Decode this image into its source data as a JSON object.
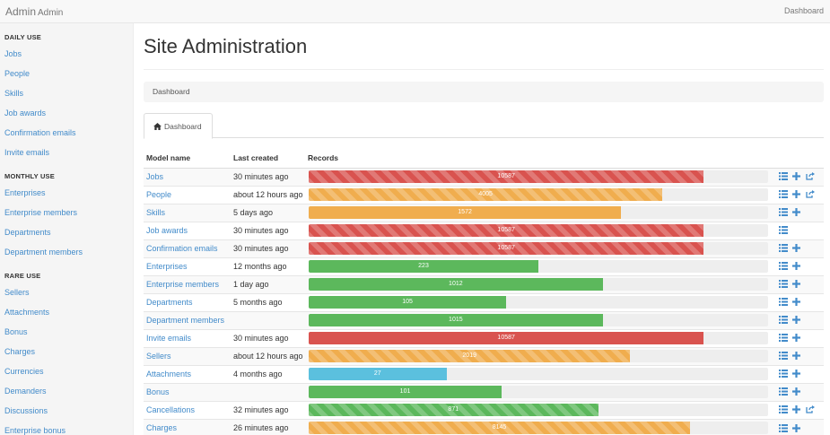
{
  "brand": {
    "title": "Admin",
    "subtitle": "Admin"
  },
  "topnav": {
    "dashboard": "Dashboard"
  },
  "sidebar": {
    "sections": [
      {
        "header": "DAILY USE",
        "items": [
          "Jobs",
          "People",
          "Skills",
          "Job awards",
          "Confirmation emails",
          "Invite emails"
        ]
      },
      {
        "header": "MONTHLY USE",
        "items": [
          "Enterprises",
          "Enterprise members",
          "Departments",
          "Department members"
        ]
      },
      {
        "header": "RARE USE",
        "items": [
          "Sellers",
          "Attachments",
          "Bonus",
          "Charges",
          "Currencies",
          "Demanders",
          "Discussions",
          "Enterprise bonus"
        ]
      }
    ]
  },
  "page": {
    "title": "Site Administration",
    "breadcrumb": "Dashboard",
    "tab": "Dashboard"
  },
  "table": {
    "headers": {
      "model": "Model name",
      "last": "Last created",
      "records": "Records"
    },
    "rows": [
      {
        "model": "Jobs",
        "last": "30 minutes ago",
        "records": "10587",
        "fill": 0.86,
        "color": "#d9534f",
        "striped": true,
        "actions": [
          "list",
          "add",
          "export"
        ]
      },
      {
        "model": "People",
        "last": "about 12 hours ago",
        "records": "4005",
        "fill": 0.77,
        "color": "#f0ad4e",
        "striped": true,
        "actions": [
          "list",
          "add",
          "export"
        ]
      },
      {
        "model": "Skills",
        "last": "5 days ago",
        "records": "1572",
        "fill": 0.68,
        "color": "#f0ad4e",
        "striped": false,
        "actions": [
          "list",
          "add"
        ]
      },
      {
        "model": "Job awards",
        "last": "30 minutes ago",
        "records": "10587",
        "fill": 0.86,
        "color": "#d9534f",
        "striped": true,
        "actions": [
          "list"
        ]
      },
      {
        "model": "Confirmation emails",
        "last": "30 minutes ago",
        "records": "10587",
        "fill": 0.86,
        "color": "#d9534f",
        "striped": true,
        "actions": [
          "list",
          "add"
        ]
      },
      {
        "model": "Enterprises",
        "last": "12 months ago",
        "records": "223",
        "fill": 0.5,
        "color": "#5cb85c",
        "striped": false,
        "actions": [
          "list",
          "add"
        ]
      },
      {
        "model": "Enterprise members",
        "last": "1 day ago",
        "records": "1012",
        "fill": 0.64,
        "color": "#5cb85c",
        "striped": false,
        "actions": [
          "list",
          "add"
        ]
      },
      {
        "model": "Departments",
        "last": "5 months ago",
        "records": "105",
        "fill": 0.43,
        "color": "#5cb85c",
        "striped": false,
        "actions": [
          "list",
          "add"
        ]
      },
      {
        "model": "Department members",
        "last": "",
        "records": "1015",
        "fill": 0.64,
        "color": "#5cb85c",
        "striped": false,
        "actions": [
          "list",
          "add"
        ]
      },
      {
        "model": "Invite emails",
        "last": "30 minutes ago",
        "records": "10587",
        "fill": 0.86,
        "color": "#d9534f",
        "striped": false,
        "actions": [
          "list",
          "add"
        ]
      },
      {
        "model": "Sellers",
        "last": "about 12 hours ago",
        "records": "2019",
        "fill": 0.7,
        "color": "#f0ad4e",
        "striped": true,
        "actions": [
          "list",
          "add"
        ]
      },
      {
        "model": "Attachments",
        "last": "4 months ago",
        "records": "27",
        "fill": 0.3,
        "color": "#5bc0de",
        "striped": false,
        "actions": [
          "list",
          "add"
        ]
      },
      {
        "model": "Bonus",
        "last": "",
        "records": "101",
        "fill": 0.42,
        "color": "#5cb85c",
        "striped": false,
        "actions": [
          "list",
          "add"
        ]
      },
      {
        "model": "Cancellations",
        "last": "32 minutes ago",
        "records": "871",
        "fill": 0.63,
        "color": "#5cb85c",
        "striped": true,
        "actions": [
          "list",
          "add",
          "export"
        ]
      },
      {
        "model": "Charges",
        "last": "26 minutes ago",
        "records": "8145",
        "fill": 0.83,
        "color": "#f0ad4e",
        "striped": true,
        "actions": [
          "list",
          "add"
        ]
      }
    ]
  }
}
